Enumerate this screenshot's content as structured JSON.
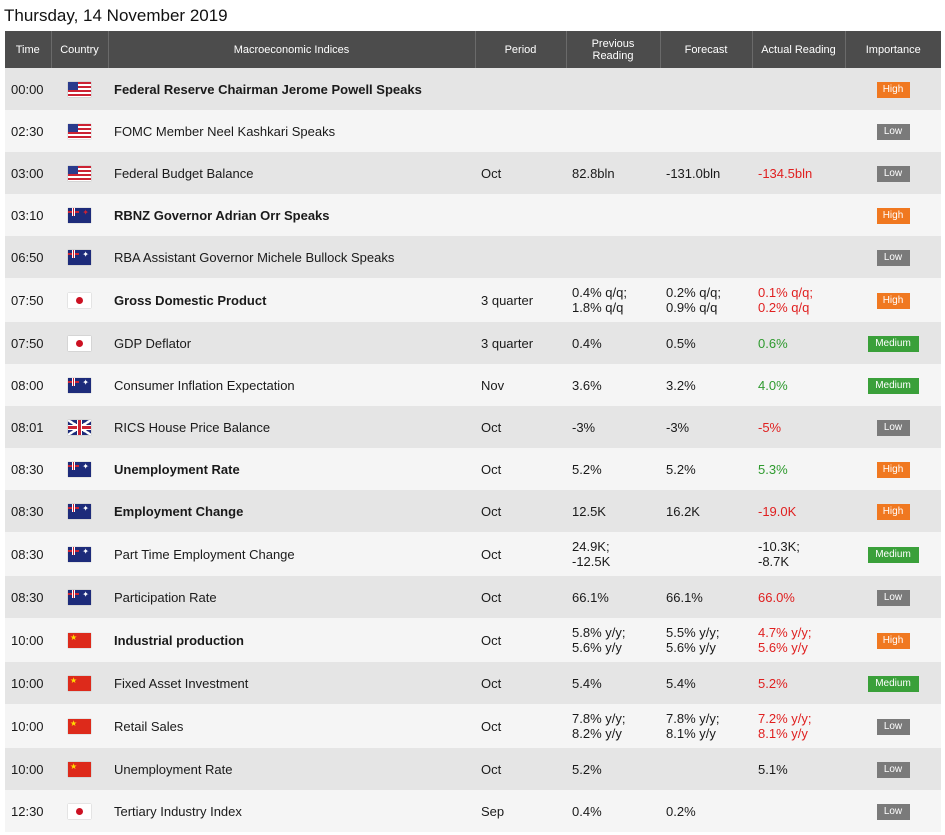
{
  "page_title": "Thursday, 14 November 2019",
  "headers": {
    "time": "Time",
    "country": "Country",
    "indices": "Macroeconomic Indices",
    "period": "Period",
    "previous": "Previous Reading",
    "forecast": "Forecast",
    "actual": "Actual Reading",
    "importance": "Importance"
  },
  "colors": {
    "header_bg": "#4c4c4c",
    "row_odd": "#e5e5e5",
    "row_even": "#f5f5f5",
    "high": "#f07820",
    "medium": "#3aa03a",
    "low": "#7a7a7a",
    "actual_worse": "#e02020",
    "actual_better": "#2e9a2e"
  },
  "rows": [
    {
      "time": "00:00",
      "country": "us-flag",
      "event": "Federal Reserve Chairman Jerome Powell Speaks",
      "bold": true,
      "period": "",
      "previous": "",
      "forecast": "",
      "actual": "",
      "actual_tone": "",
      "importance": "High"
    },
    {
      "time": "02:30",
      "country": "us-flag",
      "event": "FOMC Member Neel Kashkari Speaks",
      "bold": false,
      "period": "",
      "previous": "",
      "forecast": "",
      "actual": "",
      "actual_tone": "",
      "importance": "Low"
    },
    {
      "time": "03:00",
      "country": "us-flag",
      "event": "Federal Budget Balance",
      "bold": false,
      "period": "Oct",
      "previous": "82.8bln",
      "forecast": "-131.0bln",
      "actual": "-134.5bln",
      "actual_tone": "red",
      "importance": "Low"
    },
    {
      "time": "03:10",
      "country": "nz-flag",
      "event": "RBNZ Governor Adrian Orr Speaks",
      "bold": true,
      "period": "",
      "previous": "",
      "forecast": "",
      "actual": "",
      "actual_tone": "",
      "importance": "High"
    },
    {
      "time": "06:50",
      "country": "au-flag",
      "event": "RBA Assistant Governor Michele Bullock Speaks",
      "bold": false,
      "period": "",
      "previous": "",
      "forecast": "",
      "actual": "",
      "actual_tone": "",
      "importance": "Low"
    },
    {
      "time": "07:50",
      "country": "jp-flag",
      "event": "Gross Domestic Product",
      "bold": true,
      "period": "3 quarter",
      "previous": "0.4% q/q;\n1.8% q/q",
      "forecast": "0.2% q/q;\n0.9% q/q",
      "actual": "0.1% q/q;\n0.2% q/q",
      "actual_tone": "red",
      "importance": "High"
    },
    {
      "time": "07:50",
      "country": "jp-flag",
      "event": "GDP Deflator",
      "bold": false,
      "period": "3 quarter",
      "previous": "0.4%",
      "forecast": "0.5%",
      "actual": "0.6%",
      "actual_tone": "green",
      "importance": "Medium"
    },
    {
      "time": "08:00",
      "country": "au-flag",
      "event": "Consumer Inflation Expectation",
      "bold": false,
      "period": "Nov",
      "previous": "3.6%",
      "forecast": "3.2%",
      "actual": "4.0%",
      "actual_tone": "green",
      "importance": "Medium"
    },
    {
      "time": "08:01",
      "country": "gb-flag",
      "event": "RICS House Price Balance",
      "bold": false,
      "period": "Oct",
      "previous": "-3%",
      "forecast": "-3%",
      "actual": "-5%",
      "actual_tone": "red",
      "importance": "Low"
    },
    {
      "time": "08:30",
      "country": "au-flag",
      "event": "Unemployment Rate",
      "bold": true,
      "period": "Oct",
      "previous": "5.2%",
      "forecast": "5.2%",
      "actual": "5.3%",
      "actual_tone": "green",
      "importance": "High"
    },
    {
      "time": "08:30",
      "country": "au-flag",
      "event": "Employment Change",
      "bold": true,
      "period": "Oct",
      "previous": "12.5K",
      "forecast": "16.2K",
      "actual": "-19.0K",
      "actual_tone": "red",
      "importance": "High"
    },
    {
      "time": "08:30",
      "country": "au-flag",
      "event": "Part Time Employment Change",
      "bold": false,
      "period": "Oct",
      "previous": "24.9K;\n-12.5K",
      "forecast": "",
      "actual": "-10.3K;\n-8.7K",
      "actual_tone": "",
      "importance": "Medium"
    },
    {
      "time": "08:30",
      "country": "au-flag",
      "event": "Participation Rate",
      "bold": false,
      "period": "Oct",
      "previous": "66.1%",
      "forecast": "66.1%",
      "actual": "66.0%",
      "actual_tone": "red",
      "importance": "Low"
    },
    {
      "time": "10:00",
      "country": "cn-flag",
      "event": "Industrial production",
      "bold": true,
      "period": "Oct",
      "previous": "5.8% y/y;\n5.6% y/y",
      "forecast": "5.5% y/y;\n5.6% y/y",
      "actual": "4.7% y/y;\n5.6% y/y",
      "actual_tone": "red",
      "importance": "High"
    },
    {
      "time": "10:00",
      "country": "cn-flag",
      "event": "Fixed Asset Investment",
      "bold": false,
      "period": "Oct",
      "previous": "5.4%",
      "forecast": "5.4%",
      "actual": "5.2%",
      "actual_tone": "red",
      "importance": "Medium"
    },
    {
      "time": "10:00",
      "country": "cn-flag",
      "event": "Retail Sales",
      "bold": false,
      "period": "Oct",
      "previous": "7.8% y/y;\n8.2% y/y",
      "forecast": "7.8% y/y;\n8.1% y/y",
      "actual": "7.2% y/y;\n8.1% y/y",
      "actual_tone": "red",
      "importance": "Low"
    },
    {
      "time": "10:00",
      "country": "cn-flag",
      "event": "Unemployment Rate",
      "bold": false,
      "period": "Oct",
      "previous": "5.2%",
      "forecast": "",
      "actual": "5.1%",
      "actual_tone": "",
      "importance": "Low"
    },
    {
      "time": "12:30",
      "country": "jp-flag",
      "event": "Tertiary Industry Index",
      "bold": false,
      "period": "Sep",
      "previous": "0.4%",
      "forecast": "0.2%",
      "actual": "",
      "actual_tone": "",
      "importance": "Low"
    }
  ]
}
